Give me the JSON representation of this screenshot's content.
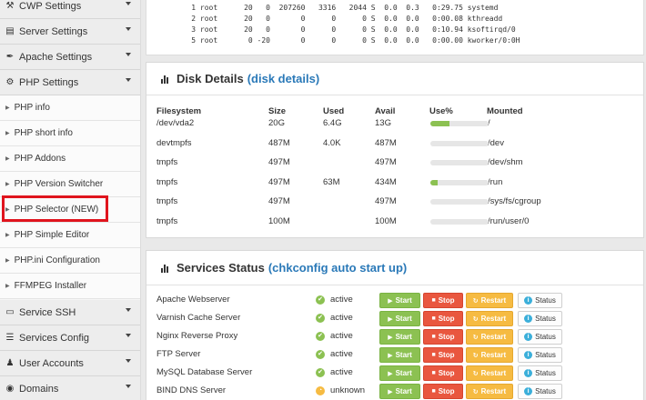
{
  "sidebar": {
    "sections_top": [
      {
        "label": "CWP Settings",
        "icon": "wrench-icon"
      },
      {
        "label": "Server Settings",
        "icon": "server-icon"
      },
      {
        "label": "Apache Settings",
        "icon": "feather-icon"
      },
      {
        "label": "PHP Settings",
        "icon": "gear-icon"
      }
    ],
    "php_items": [
      {
        "label": "PHP info"
      },
      {
        "label": "PHP short info"
      },
      {
        "label": "PHP Addons"
      },
      {
        "label": "PHP Version Switcher"
      },
      {
        "label": "PHP Selector (NEW)"
      },
      {
        "label": "PHP Simple Editor"
      },
      {
        "label": "PHP.ini Configuration"
      },
      {
        "label": "FFMPEG Installer"
      }
    ],
    "sections_bottom": [
      {
        "label": "Service SSH",
        "icon": "monitor-icon"
      },
      {
        "label": "Services Config",
        "icon": "list-icon"
      },
      {
        "label": "User Accounts",
        "icon": "user-icon"
      },
      {
        "label": "Domains",
        "icon": "globe-icon"
      }
    ]
  },
  "processes": [
    "    1 root      20   0  207260   3316   2044 S  0.0  0.3   0:29.75 systemd",
    "    2 root      20   0       0      0      0 S  0.0  0.0   0:00.08 kthreadd",
    "    3 root      20   0       0      0      0 S  0.0  0.0   0:10.94 ksoftirqd/0",
    "    5 root       0 -20       0      0      0 S  0.0  0.0   0:00.00 kworker/0:0H"
  ],
  "disk": {
    "title": "Disk Details",
    "link": "(disk details)",
    "headers": {
      "fs": "Filesystem",
      "size": "Size",
      "used": "Used",
      "avail": "Avail",
      "use": "Use%",
      "mounted": "Mounted"
    },
    "rows": [
      {
        "fs": "/dev/vda2",
        "size": "20G",
        "used": "6.4G",
        "avail": "13G",
        "use_fraction": 0.33,
        "mounted": "/"
      },
      {
        "fs": "devtmpfs",
        "size": "487M",
        "used": "4.0K",
        "avail": "487M",
        "use_fraction": 0.0,
        "mounted": "/dev"
      },
      {
        "fs": "tmpfs",
        "size": "497M",
        "used": "",
        "avail": "497M",
        "use_fraction": 0.0,
        "mounted": "/dev/shm"
      },
      {
        "fs": "tmpfs",
        "size": "497M",
        "used": "63M",
        "avail": "434M",
        "use_fraction": 0.13,
        "mounted": "/run"
      },
      {
        "fs": "tmpfs",
        "size": "497M",
        "used": "",
        "avail": "497M",
        "use_fraction": 0.0,
        "mounted": "/sys/fs/cgroup"
      },
      {
        "fs": "tmpfs",
        "size": "100M",
        "used": "",
        "avail": "100M",
        "use_fraction": 0.0,
        "mounted": "/run/user/0"
      }
    ]
  },
  "services": {
    "title": "Services Status",
    "link": "(chkconfig auto start up)",
    "buttons": {
      "start": "Start",
      "stop": "Stop",
      "restart": "Restart",
      "status": "Status"
    },
    "rows": [
      {
        "name": "Apache Webserver",
        "state": "active"
      },
      {
        "name": "Varnish Cache Server",
        "state": "active"
      },
      {
        "name": "Nginx Reverse Proxy",
        "state": "active"
      },
      {
        "name": "FTP Server",
        "state": "active"
      },
      {
        "name": "MySQL Database Server",
        "state": "active"
      },
      {
        "name": "BIND DNS Server",
        "state": "unknown"
      }
    ]
  },
  "colors": {
    "accent": "#2a79b8",
    "highlight": "#e0141d",
    "green": "#8cc152",
    "red": "#e9573f",
    "orange": "#f6bb42",
    "info": "#3bafda"
  }
}
